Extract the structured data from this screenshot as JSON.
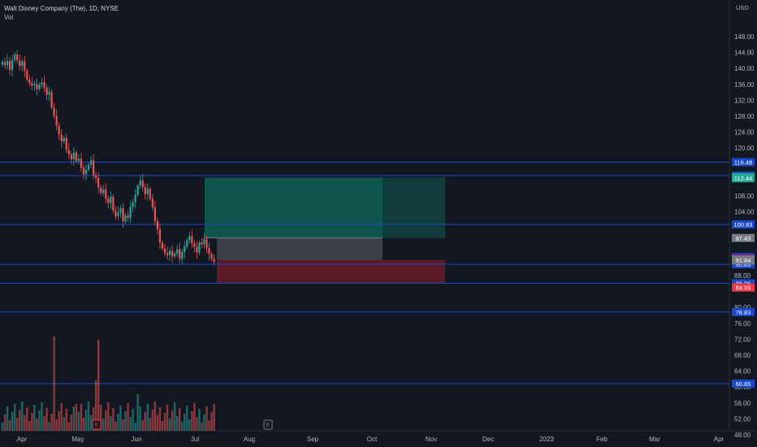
{
  "header": {
    "title": "Walt Disney Company (The), 1D, NYSE",
    "volume_label": "Vol"
  },
  "axis": {
    "currency": "USD",
    "price_ticks": [
      "148.00",
      "144.00",
      "140.00",
      "136.00",
      "132.00",
      "128.00",
      "124.00",
      "120.00",
      "108.00",
      "104.00",
      "88.00",
      "80.00",
      "76.00",
      "72.00",
      "68.00",
      "64.00",
      "60.00",
      "56.00",
      "52.00",
      "48.00"
    ],
    "months": [
      "Apr",
      "May",
      "Jun",
      "Jul",
      "Aug",
      "Sep",
      "Oct",
      "Nov",
      "Dec",
      "2023",
      "Feb",
      "Mar",
      "Apr"
    ]
  },
  "levels": [
    {
      "label": "116.48",
      "value": 116.48,
      "color": "#1848cc"
    },
    {
      "label": "113.09",
      "value": 113.09,
      "color": "#1848cc"
    },
    {
      "label": "100.83",
      "value": 100.83,
      "color": "#1848cc"
    },
    {
      "label": "90.83",
      "value": 90.83,
      "color": "#1848cc"
    },
    {
      "label": "86.06",
      "value": 86.06,
      "color": "#1848cc"
    },
    {
      "label": "78.83",
      "value": 78.83,
      "color": "#1848cc"
    },
    {
      "label": "60.85",
      "value": 60.85,
      "color": "#1848cc"
    }
  ],
  "position_labels": [
    {
      "label": "112.67",
      "value": 112.67,
      "color": "#22ab94"
    },
    {
      "label": "112.44",
      "value": 112.44,
      "color": "#22ab94"
    },
    {
      "label": "97.43",
      "value": 97.43,
      "color": "#787b86"
    },
    {
      "label": "92.62",
      "value": 92.62,
      "color": "#1848cc"
    },
    {
      "label": "92.09",
      "value": 92.09,
      "color": "#f23645"
    },
    {
      "label": "91.84",
      "value": 91.84,
      "color": "#22ab94"
    },
    {
      "label": "91.84",
      "value": 91.84,
      "color": "#787b86"
    },
    {
      "label": "84.99",
      "value": 84.99,
      "color": "#f23645"
    }
  ],
  "events": [
    {
      "label": "E",
      "color": "#f23645"
    },
    {
      "label": "E",
      "color": "#787b86"
    }
  ],
  "colors": {
    "up": "#26a69a",
    "down": "#ef5350",
    "line": "#2962ff",
    "bg": "#131722",
    "grid": "#1e222d"
  }
}
